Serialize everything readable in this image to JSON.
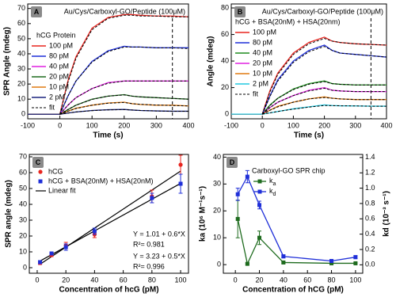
{
  "chart_data": [
    {
      "type": "line",
      "label": "A",
      "title": "Au/Cys/Carboxyl-GO/Peptide (100μM)",
      "legend_title": "hCG Protein",
      "x_label": "Time (s)",
      "y_label": "SPR Angle (mdeg)",
      "x": [
        -100,
        -50,
        0,
        25,
        50,
        100,
        150,
        200,
        225,
        250,
        300,
        350,
        400
      ],
      "xlim": [
        -100,
        400
      ],
      "xticks": [
        -100,
        0,
        100,
        200,
        300,
        400
      ],
      "ylim": [
        -3,
        73
      ],
      "yticks": [
        0,
        10,
        20,
        30,
        40,
        50,
        60,
        70
      ],
      "vline": 350,
      "series": [
        {
          "name": "100 pM",
          "color": "#e8251f",
          "values": [
            0,
            0,
            0,
            22,
            38,
            57,
            64,
            66,
            66,
            65.5,
            65,
            65,
            64.5
          ]
        },
        {
          "name": "80 pM",
          "color": "#1f2fd8",
          "values": [
            0,
            0,
            0,
            12,
            22,
            35,
            42,
            45,
            44.5,
            44.5,
            44,
            44,
            44
          ]
        },
        {
          "name": "40 pM",
          "color": "#e020e0",
          "values": [
            0,
            0,
            0,
            6,
            11,
            17,
            21,
            22,
            22,
            22,
            22,
            22,
            22
          ]
        },
        {
          "name": "20 pM",
          "color": "#1e6b1e",
          "values": [
            0,
            0,
            0,
            3,
            6,
            10,
            12,
            13,
            12,
            11.5,
            11,
            10.5,
            10
          ]
        },
        {
          "name": "10 pM",
          "color": "#e07a10",
          "values": [
            0,
            0,
            0,
            2,
            4,
            6,
            7.5,
            8,
            7,
            6.5,
            6,
            6,
            5.5
          ]
        },
        {
          "name": "2 pM",
          "color": "#1a237e",
          "values": [
            0,
            0,
            0,
            0.8,
            1.5,
            2.5,
            3,
            3.2,
            2.8,
            2.5,
            2.2,
            2,
            2
          ]
        }
      ],
      "fit": {
        "name": "fit",
        "color": "#000000",
        "curves": [
          [
            null,
            null,
            0,
            21,
            37,
            56,
            63.5,
            65.5,
            65.5,
            65,
            65,
            64.5,
            64.5
          ],
          [
            null,
            null,
            0,
            12,
            22,
            34.5,
            41.5,
            44.5,
            44.5,
            44.5,
            44,
            44,
            43.5
          ],
          [
            null,
            null,
            0,
            6,
            11,
            17,
            20.5,
            22,
            22,
            22,
            22,
            22,
            22
          ],
          [
            null,
            null,
            0,
            3.2,
            6,
            9.8,
            12,
            12.8,
            12,
            11.5,
            11,
            10.5,
            10
          ],
          [
            null,
            null,
            0,
            2,
            3.8,
            6,
            7.3,
            7.8,
            7,
            6.6,
            6.1,
            5.8,
            5.5
          ],
          [
            null,
            null,
            0,
            0.8,
            1.5,
            2.4,
            2.9,
            3.1,
            2.8,
            2.5,
            2.2,
            2,
            2
          ]
        ]
      }
    },
    {
      "type": "line",
      "label": "B",
      "title": "Au/Cys/Carboxyl-GO/Peptide (100μM)",
      "legend_title": "hCG + BSA(20nM) + HSA(20nm)",
      "x_label": "Time (s)",
      "y_label": "Angle (mdeg)",
      "x": [
        -100,
        -50,
        0,
        25,
        50,
        100,
        150,
        200,
        225,
        250,
        300,
        350,
        400
      ],
      "xlim": [
        -100,
        400
      ],
      "xticks": [
        -100,
        0,
        100,
        200,
        300,
        400
      ],
      "ylim": [
        -3.5,
        83
      ],
      "yticks": [
        0,
        20,
        40,
        60,
        80
      ],
      "vline": 350,
      "series": [
        {
          "name": "100 pM",
          "color": "#e8251f",
          "values": [
            0,
            0,
            0,
            18,
            31,
            46,
            54,
            58,
            55,
            54,
            53,
            52.5,
            52
          ]
        },
        {
          "name": "80 pM",
          "color": "#1f2fd8",
          "values": [
            0,
            0,
            0,
            14,
            26,
            40,
            48,
            52,
            48,
            46,
            45,
            44,
            43
          ]
        },
        {
          "name": "40 pM",
          "color": "#1e8c1e",
          "values": [
            0,
            0,
            0,
            7,
            12,
            19,
            23,
            25,
            23,
            22.5,
            22,
            22,
            22
          ]
        },
        {
          "name": "20 pM",
          "color": "#e020e0",
          "values": [
            0,
            0,
            0,
            5,
            9,
            14,
            18,
            20,
            18,
            17.5,
            17,
            17,
            17
          ]
        },
        {
          "name": "10 pM",
          "color": "#e07a10",
          "values": [
            0,
            0,
            0,
            3,
            6,
            9,
            11.5,
            13,
            12,
            11.5,
            11,
            11,
            11
          ]
        },
        {
          "name": "2 pM",
          "color": "#22c8e0",
          "values": [
            0,
            0,
            0,
            1,
            2,
            4,
            5.5,
            7,
            6.5,
            6.3,
            6.2,
            6,
            6
          ]
        }
      ],
      "fit": {
        "name": "fit",
        "color": "#000000",
        "curves": [
          [
            null,
            null,
            0,
            17,
            30,
            45,
            53,
            57,
            55,
            54,
            53,
            52.5,
            52
          ],
          [
            null,
            null,
            0,
            13.5,
            25,
            39,
            47,
            51,
            48,
            46,
            45,
            44,
            43
          ],
          [
            null,
            null,
            0,
            6.5,
            12,
            18.5,
            22.5,
            24.5,
            23,
            22.5,
            22,
            22,
            22
          ],
          [
            null,
            null,
            0,
            5,
            9,
            14,
            17.5,
            19.5,
            18,
            17.5,
            17,
            17,
            17
          ],
          [
            null,
            null,
            0,
            3,
            5.5,
            9,
            11.5,
            12.5,
            12,
            11.5,
            11,
            11,
            11
          ],
          [
            null,
            null,
            0,
            1,
            2,
            3.8,
            5.3,
            6.5,
            6.4,
            6.3,
            6.2,
            6,
            6
          ]
        ]
      }
    },
    {
      "type": "scatter",
      "label": "C",
      "x_label": "Concentration of hcG (pM)",
      "y_label": "SPR angle (mdeg)",
      "xlim": [
        -5.5,
        105.5
      ],
      "xticks": [
        0,
        20,
        40,
        60,
        80,
        100
      ],
      "ylim": [
        -3.5,
        71.5
      ],
      "yticks": [
        0,
        10,
        20,
        30,
        40,
        50,
        60,
        70
      ],
      "series": [
        {
          "name": "hCG",
          "color": "#e8251f",
          "marker": "circle",
          "x": [
            2,
            10,
            20,
            40,
            80,
            100
          ],
          "values": [
            3,
            8,
            14,
            21,
            45,
            65
          ],
          "errors": [
            1,
            1,
            2,
            2,
            4,
            6
          ]
        },
        {
          "name": "hCG + BSA(20nM) + HSA(20nM)",
          "color": "#1f2fd8",
          "marker": "square",
          "x": [
            2,
            10,
            20,
            40,
            80,
            100
          ],
          "values": [
            3.5,
            9,
            13,
            23,
            44,
            53
          ],
          "errors": [
            1,
            1,
            2,
            2,
            3,
            6
          ]
        }
      ],
      "fits": [
        {
          "name": "Linear fit",
          "color": "#000000",
          "intercept": 1.01,
          "slope": 0.6,
          "equation": "Y = 1.01 + 0.6*X",
          "r2": "R²= 0.981",
          "text_color": "#e8251f"
        },
        {
          "color": "#000000",
          "intercept": 3.23,
          "slope": 0.5,
          "equation": "Y = 3.23 + 0.5*X",
          "r2": "R²= 0.996",
          "text_color": "#1f2fd8"
        }
      ]
    },
    {
      "type": "dual",
      "label": "D",
      "legend_title": "Carboxyl-GO SPR chip",
      "x_label": "Concentration of hCG (pM)",
      "y_label": "ka (10⁶ M⁻¹s⁻¹)",
      "y2_label": "kd (10⁻³ s⁻¹)",
      "x": [
        2,
        10,
        20,
        40,
        80,
        100
      ],
      "xlim": [
        -10,
        106
      ],
      "xticks": [
        0,
        20,
        40,
        60,
        80,
        100
      ],
      "ylim": [
        -3.2,
        41
      ],
      "yticks": [
        0,
        10,
        20,
        30,
        40
      ],
      "y2lim": [
        -0.11,
        1.44
      ],
      "y2ticks": [
        {
          "value": 0,
          "label": "0.0"
        },
        0.2,
        0.4,
        0.6,
        0.8,
        {
          "value": 1,
          "label": "1.0"
        },
        1.2,
        1.4
      ],
      "series": [
        {
          "name": "ka",
          "color": "#1e6b1e",
          "axis": "y",
          "values": [
            17,
            0.3,
            10,
            0.8,
            0.5,
            0.5
          ],
          "errors": [
            7,
            0.3,
            2.5,
            0.3,
            0.2,
            0.2
          ]
        },
        {
          "name": "kd",
          "color": "#1f2fd8",
          "axis": "y2",
          "values": [
            0.92,
            1.15,
            0.78,
            0.11,
            0.05,
            0.1
          ],
          "errors": [
            0.08,
            0.08,
            0.05,
            0.02,
            0.02,
            0.02
          ]
        }
      ]
    }
  ]
}
